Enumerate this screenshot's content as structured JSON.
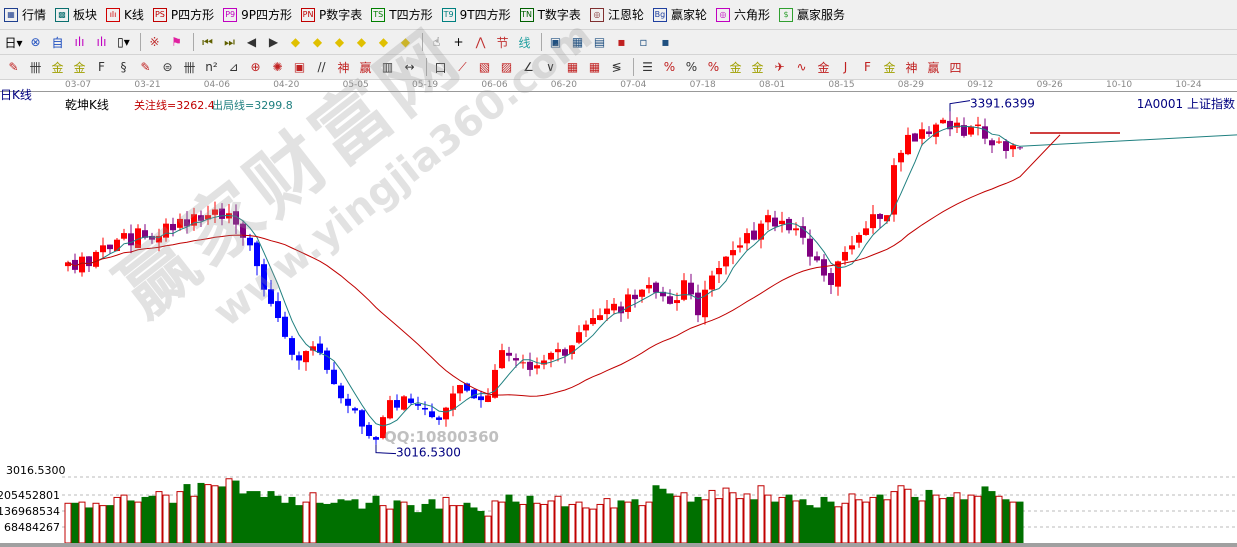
{
  "menu": [
    {
      "label": "行情",
      "icon": "grid-icon",
      "color": "#1f3f8f",
      "glyph": "▦"
    },
    {
      "label": "板块",
      "icon": "blocks-icon",
      "color": "#0a6f6f",
      "glyph": "▩"
    },
    {
      "label": "K线",
      "icon": "kline-icon",
      "color": "#d00000",
      "glyph": "ılı"
    },
    {
      "label": "P四方形",
      "icon": "ps-icon",
      "color": "#c00000",
      "glyph": "PS"
    },
    {
      "label": "9P四方形",
      "icon": "p9-icon",
      "color": "#c000c0",
      "glyph": "P9"
    },
    {
      "label": "P数字表",
      "icon": "pn-icon",
      "color": "#c00000",
      "glyph": "PN"
    },
    {
      "label": "T四方形",
      "icon": "ts-icon",
      "color": "#008000",
      "glyph": "TS"
    },
    {
      "label": "9T四方形",
      "icon": "t9-icon",
      "color": "#008080",
      "glyph": "T9"
    },
    {
      "label": "T数字表",
      "icon": "tn-icon",
      "color": "#006000",
      "glyph": "TN"
    },
    {
      "label": "江恩轮",
      "icon": "gann-wheel-icon",
      "color": "#803030",
      "glyph": "◎"
    },
    {
      "label": "赢家轮",
      "icon": "winner-wheel-icon",
      "color": "#2040a0",
      "glyph": "Bg"
    },
    {
      "label": "六角形",
      "icon": "hexagon-icon",
      "color": "#c000c0",
      "glyph": "◎"
    },
    {
      "label": "赢家服务",
      "icon": "dollar-icon",
      "color": "#30a030",
      "glyph": "$"
    }
  ],
  "toolbar2": [
    {
      "name": "period-day-dropdown",
      "glyph": "日▾",
      "color": "#000"
    },
    {
      "name": "exchange-icon",
      "glyph": "⊗",
      "color": "#2050c0"
    },
    {
      "name": "custom-icon",
      "glyph": "自",
      "color": "#2050c0"
    },
    {
      "name": "kline3-icon",
      "glyph": "ılı",
      "color": "#c000c0"
    },
    {
      "name": "kline9-icon",
      "glyph": "ılı",
      "color": "#c000c0"
    },
    {
      "name": "candle-type-dropdown",
      "glyph": "▯▾",
      "color": "#000"
    },
    {
      "name": "overlay-icon",
      "glyph": "※",
      "color": "#c03030"
    },
    {
      "name": "flag-icon",
      "glyph": "⚑",
      "color": "#e020a0"
    },
    {
      "name": "first-icon",
      "glyph": "⏮",
      "color": "#606000"
    },
    {
      "name": "last-icon",
      "glyph": "⏭",
      "color": "#606000"
    },
    {
      "name": "prev-icon",
      "glyph": "◀",
      "color": "#333"
    },
    {
      "name": "next-icon",
      "glyph": "▶",
      "color": "#333"
    },
    {
      "name": "zoom-left-icon",
      "glyph": "◆",
      "color": "#e0c000"
    },
    {
      "name": "zoom-right-icon",
      "glyph": "◆",
      "color": "#e0c000"
    },
    {
      "name": "expand-icon",
      "glyph": "◆",
      "color": "#e0c000"
    },
    {
      "name": "shrink-icon",
      "glyph": "◆",
      "color": "#e0c000"
    },
    {
      "name": "expand-all-icon",
      "glyph": "◆",
      "color": "#e0c000"
    },
    {
      "name": "shrink-all-icon",
      "glyph": "◆",
      "color": "#e0c000"
    },
    {
      "name": "hand-icon",
      "glyph": "☝",
      "color": "#333"
    },
    {
      "name": "crosshair-icon",
      "glyph": "+",
      "color": "#000"
    },
    {
      "name": "trend-icon",
      "glyph": "⋀",
      "color": "#c03030"
    },
    {
      "name": "festival-icon",
      "glyph": "节",
      "color": "#c03030"
    },
    {
      "name": "line-icon",
      "glyph": "线",
      "color": "#20a0a0"
    },
    {
      "name": "calendar-icon",
      "glyph": "▣",
      "color": "#205080"
    },
    {
      "name": "calculator-icon",
      "glyph": "▦",
      "color": "#205080"
    },
    {
      "name": "notes-icon",
      "glyph": "▤",
      "color": "#205080"
    },
    {
      "name": "save-icon",
      "glyph": "▪",
      "color": "#c02020"
    },
    {
      "name": "network-icon",
      "glyph": "▫",
      "color": "#205080"
    },
    {
      "name": "computer-icon",
      "glyph": "▪",
      "color": "#205080"
    }
  ],
  "toolbar3": [
    {
      "name": "pen-icon",
      "glyph": "✎",
      "color": "#c02020"
    },
    {
      "name": "grid-lines-icon",
      "glyph": "卌",
      "color": "#333"
    },
    {
      "name": "gold-grid-icon",
      "glyph": "金",
      "color": "#a0a000"
    },
    {
      "name": "gold-grid2-icon",
      "glyph": "金",
      "color": "#a0a000"
    },
    {
      "name": "fib-icon",
      "glyph": "F",
      "color": "#333"
    },
    {
      "name": "spiral-icon",
      "glyph": "§",
      "color": "#333"
    },
    {
      "name": "marker-icon",
      "glyph": "✎",
      "color": "#c02020"
    },
    {
      "name": "circle-grid-icon",
      "glyph": "⊜",
      "color": "#333"
    },
    {
      "name": "hash-icon",
      "glyph": "卌",
      "color": "#333"
    },
    {
      "name": "square-icon",
      "glyph": "n²",
      "color": "#333"
    },
    {
      "name": "angle-icon",
      "glyph": "⊿",
      "color": "#333"
    },
    {
      "name": "target-icon",
      "glyph": "⊕",
      "color": "#c02020"
    },
    {
      "name": "star-icon",
      "glyph": "✺",
      "color": "#c02020"
    },
    {
      "name": "box-icon",
      "glyph": "▣",
      "color": "#c02020"
    },
    {
      "name": "parallel-icon",
      "glyph": "//",
      "color": "#333"
    },
    {
      "name": "shen-icon",
      "glyph": "神",
      "color": "#c02020"
    },
    {
      "name": "ying-icon",
      "glyph": "赢",
      "color": "#c02020"
    },
    {
      "name": "table-icon",
      "glyph": "▥",
      "color": "#333"
    },
    {
      "name": "width-icon",
      "glyph": "↔",
      "color": "#333"
    },
    {
      "name": "frame-icon",
      "glyph": "口",
      "color": "#333"
    },
    {
      "name": "fan-icon",
      "glyph": "⟋",
      "color": "#c02020"
    },
    {
      "name": "box-fan-icon",
      "glyph": "▧",
      "color": "#c02020"
    },
    {
      "name": "box-fan2-icon",
      "glyph": "▨",
      "color": "#c02020"
    },
    {
      "name": "angle-fan-icon",
      "glyph": "∠",
      "color": "#333"
    },
    {
      "name": "wave-icon",
      "glyph": "∨",
      "color": "#333"
    },
    {
      "name": "grid-red-icon",
      "glyph": "▦",
      "color": "#c02020"
    },
    {
      "name": "grid-red2-icon",
      "glyph": "▦",
      "color": "#c02020"
    },
    {
      "name": "multi-line-icon",
      "glyph": "≶",
      "color": "#333"
    },
    {
      "name": "list-icon",
      "glyph": "☰",
      "color": "#333"
    },
    {
      "name": "percent-slash-icon",
      "glyph": "%",
      "color": "#c02020"
    },
    {
      "name": "percent-icon",
      "glyph": "%",
      "color": "#333"
    },
    {
      "name": "percent-lines-icon",
      "glyph": "%",
      "color": "#c02020"
    },
    {
      "name": "gold-circle-icon",
      "glyph": "金",
      "color": "#a0a000"
    },
    {
      "name": "gold-lines-icon",
      "glyph": "金",
      "color": "#a0a000"
    },
    {
      "name": "rocket-icon",
      "glyph": "✈",
      "color": "#c02020"
    },
    {
      "name": "sine-icon",
      "glyph": "∿",
      "color": "#c02020"
    },
    {
      "name": "gold-red-icon",
      "glyph": "金",
      "color": "#c02020"
    },
    {
      "name": "j-fan-icon",
      "glyph": "J",
      "color": "#c02020"
    },
    {
      "name": "f-fan-icon",
      "glyph": "F",
      "color": "#c02020"
    },
    {
      "name": "gold-fan-icon",
      "glyph": "金",
      "color": "#a0a000"
    },
    {
      "name": "shen-fan-icon",
      "glyph": "神",
      "color": "#c02020"
    },
    {
      "name": "ying-fan-icon",
      "glyph": "赢",
      "color": "#c02020"
    },
    {
      "name": "four-fan-icon",
      "glyph": "四",
      "color": "#c02020"
    }
  ],
  "chart": {
    "period_label": "日K线",
    "indicator_name": "乾坤K线",
    "focus_line": "关注线=3262.4",
    "exit_line": "出局线=3299.8",
    "symbol": "1A0001  上证指数",
    "high_label": "3391.6399",
    "low_label": "3016.5300",
    "price_axis_label": "3016.5300",
    "volume_ticks": [
      "205452801",
      "136968534",
      "68484267"
    ],
    "dates": [
      "03-07",
      "03-21",
      "04-06",
      "04-20",
      "05-05",
      "05-19",
      "06-06",
      "06-20",
      "07-04",
      "07-18",
      "08-01",
      "08-15",
      "08-29",
      "09-12",
      "09-26",
      "10-10",
      "10-24"
    ],
    "colors": {
      "up": "#ff0000",
      "down_blue": "#0000ff",
      "down_purple": "#800080",
      "ma_short": "#208080",
      "ma_long": "#c00000",
      "vol_up": "#c00000",
      "vol_down": "#007000",
      "text_blue": "#000080"
    }
  },
  "chart_data": {
    "type": "candlestick",
    "ylim": [
      3016.53,
      3391.64
    ],
    "closes": [
      3244,
      3236,
      3250,
      3240,
      3255,
      3262,
      3258,
      3268,
      3275,
      3262,
      3280,
      3270,
      3268,
      3272,
      3285,
      3278,
      3290,
      3282,
      3295,
      3288,
      3294,
      3300,
      3290,
      3296,
      3284,
      3270,
      3262,
      3240,
      3215,
      3200,
      3185,
      3165,
      3146,
      3140,
      3150,
      3155,
      3148,
      3130,
      3115,
      3100,
      3092,
      3087,
      3070,
      3060,
      3056,
      3080,
      3098,
      3090,
      3102,
      3095,
      3092,
      3088,
      3080,
      3077,
      3090,
      3105,
      3114,
      3108,
      3100,
      3098,
      3103,
      3130,
      3151,
      3145,
      3140,
      3138,
      3130,
      3135,
      3140,
      3148,
      3152,
      3145,
      3156,
      3170,
      3178,
      3185,
      3188,
      3195,
      3200,
      3190,
      3210,
      3205,
      3215,
      3220,
      3212,
      3208,
      3200,
      3204,
      3225,
      3210,
      3188,
      3215,
      3230,
      3238,
      3250,
      3257,
      3262,
      3275,
      3268,
      3285,
      3294,
      3282,
      3288,
      3278,
      3280,
      3270,
      3250,
      3246,
      3230,
      3220,
      3245,
      3255,
      3262,
      3273,
      3280,
      3295,
      3290,
      3294,
      3347,
      3360,
      3379,
      3372,
      3385,
      3380,
      3390,
      3395,
      3385,
      3392,
      3378,
      3388,
      3390,
      3375,
      3368,
      3372,
      3362,
      3368,
      3365
    ],
    "volumes_million": [
      170,
      170,
      175,
      150,
      170,
      160,
      160,
      195,
      205,
      180,
      175,
      195,
      200,
      220,
      205,
      170,
      220,
      250,
      200,
      255,
      250,
      245,
      240,
      275,
      265,
      210,
      220,
      220,
      195,
      220,
      200,
      170,
      195,
      160,
      175,
      215,
      170,
      165,
      170,
      185,
      180,
      185,
      145,
      170,
      200,
      160,
      145,
      180,
      175,
      160,
      130,
      165,
      185,
      145,
      195,
      160,
      160,
      170,
      150,
      135,
      115,
      180,
      175,
      205,
      175,
      165,
      200,
      170,
      165,
      180,
      200,
      155,
      165,
      175,
      150,
      145,
      165,
      190,
      150,
      180,
      175,
      185,
      160,
      175,
      245,
      230,
      210,
      200,
      215,
      175,
      195,
      185,
      225,
      190,
      235,
      215,
      190,
      210,
      185,
      245,
      205,
      175,
      195,
      205,
      180,
      185,
      160,
      150,
      195,
      175,
      155,
      170,
      210,
      185,
      175,
      195,
      205,
      185,
      220,
      245,
      230,
      195,
      180,
      225,
      205,
      190,
      195,
      215,
      185,
      205,
      200,
      240,
      220,
      200,
      185,
      175,
      175
    ]
  },
  "watermark": {
    "title": "赢家财富网",
    "url": "www.yingjia360.com",
    "qq": "QQ:10800360"
  }
}
